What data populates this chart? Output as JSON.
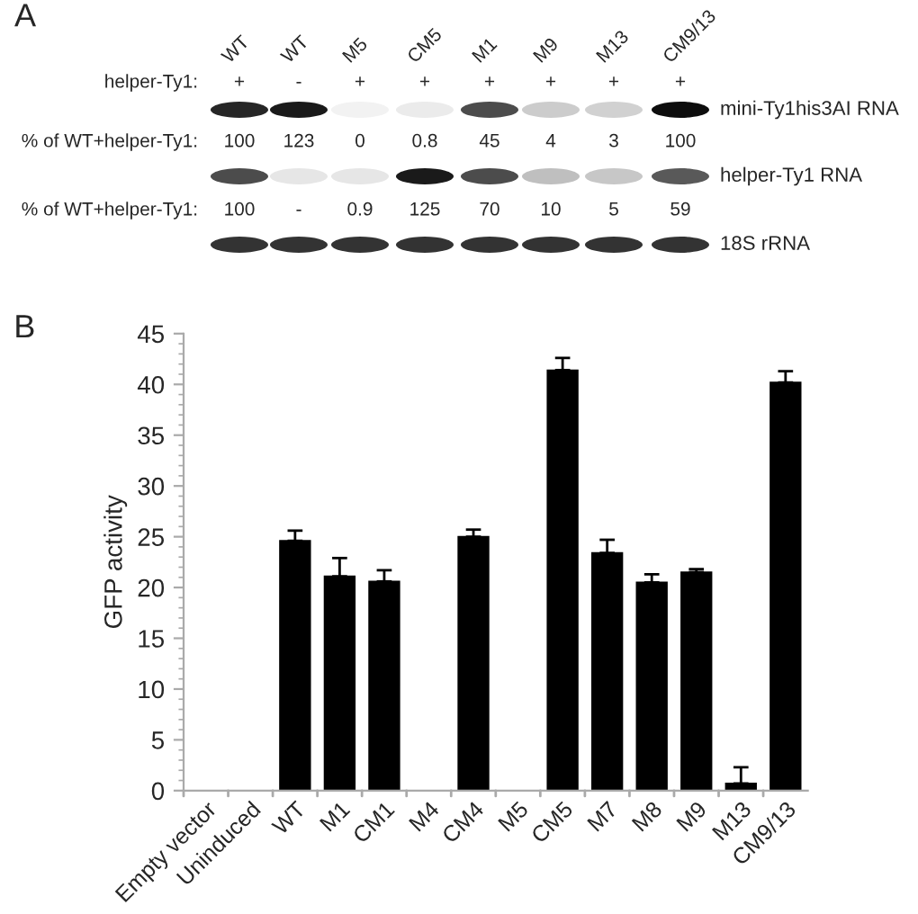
{
  "chart_data": [
    {
      "type": "other",
      "title": "A",
      "annotations": [
        "WT",
        "WT",
        "M5",
        "CM5",
        "M1",
        "M9",
        "M13",
        "CM9/13",
        "helper-Ty1:",
        "+",
        "-",
        "+",
        "+",
        "+",
        "+",
        "+",
        "+",
        "mini-Ty1his3AI RNA",
        "% of WT+helper-Ty1:",
        "100",
        "123",
        "0",
        "0.8",
        "45",
        "4",
        "3",
        "100",
        "helper-Ty1 RNA",
        "% of WT+helper-Ty1:",
        "100",
        "-",
        "0.9",
        "125",
        "70",
        "10",
        "5",
        "59",
        "18S rRNA"
      ]
    },
    {
      "type": "bar",
      "title": "B",
      "ylabel": "GFP activity",
      "categories": [
        "Empty vector",
        "Uninduced",
        "WT",
        "M1",
        "CM1",
        "M4",
        "CM4",
        "M5",
        "CM5",
        "M7",
        "M8",
        "M9",
        "M13",
        "CM9/13"
      ],
      "values": [
        0,
        0,
        24.6,
        21.1,
        20.6,
        0,
        25.0,
        0,
        41.4,
        23.4,
        20.5,
        21.5,
        0.7,
        40.2
      ],
      "errors": [
        null,
        null,
        [
          24.6,
          25.6
        ],
        [
          21.1,
          22.9
        ],
        [
          20.6,
          21.7
        ],
        null,
        [
          25.0,
          25.7
        ],
        null,
        [
          41.4,
          42.6
        ],
        [
          23.4,
          24.7
        ],
        [
          20.5,
          21.3
        ],
        [
          21.5,
          21.8
        ],
        [
          0.7,
          2.3
        ],
        [
          40.2,
          41.3
        ]
      ],
      "color": "#000000",
      "ylim": [
        0,
        45
      ],
      "yticks": [
        0,
        5,
        10,
        15,
        20,
        25,
        30,
        35,
        40,
        45
      ],
      "grid": false,
      "legend": false
    }
  ]
}
